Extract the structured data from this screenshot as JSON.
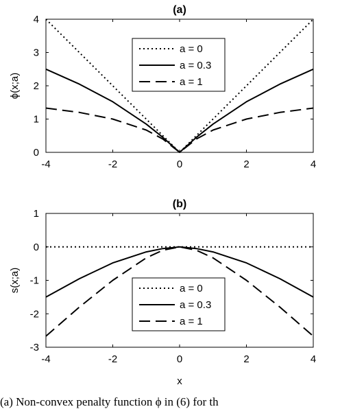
{
  "chart_data": [
    {
      "type": "line",
      "title": "(a)",
      "xlabel": "",
      "ylabel": "ϕ(x;a)",
      "xlim": [
        -4,
        4
      ],
      "ylim": [
        0,
        4
      ],
      "xticks": [
        "-4",
        "-2",
        "0",
        "2",
        "4"
      ],
      "yticks": [
        "0",
        "1",
        "2",
        "3",
        "4"
      ],
      "grid": false,
      "legend_position": "top-center",
      "series": [
        {
          "name": "a = 0",
          "style": "dotted",
          "x": [
            -4,
            -2,
            0,
            2,
            4
          ],
          "y": [
            4,
            2,
            0,
            2,
            4
          ]
        },
        {
          "name": "a = 0.3",
          "style": "solid",
          "x": [
            -4,
            -3,
            -2,
            -1,
            -0.5,
            0,
            0.5,
            1,
            2,
            3,
            4
          ],
          "y": [
            2.5,
            2.05,
            1.52,
            0.85,
            0.45,
            0,
            0.45,
            0.85,
            1.52,
            2.05,
            2.5
          ]
        },
        {
          "name": "a = 1",
          "style": "dashed",
          "x": [
            -4,
            -3,
            -2,
            -1,
            -0.5,
            0,
            0.5,
            1,
            2,
            3,
            4
          ],
          "y": [
            1.33,
            1.2,
            1.0,
            0.67,
            0.4,
            0,
            0.4,
            0.67,
            1.0,
            1.2,
            1.33
          ]
        }
      ]
    },
    {
      "type": "line",
      "title": "(b)",
      "xlabel": "x",
      "ylabel": "s(x;a)",
      "xlim": [
        -4,
        4
      ],
      "ylim": [
        -3,
        1
      ],
      "xticks": [
        "-4",
        "-2",
        "0",
        "2",
        "4"
      ],
      "yticks": [
        "-3",
        "-2",
        "-1",
        "0",
        "1"
      ],
      "grid": false,
      "legend_position": "bottom-center",
      "series": [
        {
          "name": "a = 0",
          "style": "dotted",
          "x": [
            -4,
            4
          ],
          "y": [
            0,
            0
          ]
        },
        {
          "name": "a = 0.3",
          "style": "solid",
          "x": [
            -4,
            -3,
            -2,
            -1,
            -0.5,
            0,
            0.5,
            1,
            2,
            3,
            4
          ],
          "y": [
            -1.5,
            -0.95,
            -0.48,
            -0.15,
            -0.05,
            0,
            -0.05,
            -0.15,
            -0.48,
            -0.95,
            -1.5
          ]
        },
        {
          "name": "a = 1",
          "style": "dashed",
          "x": [
            -4,
            -3,
            -2,
            -1,
            -0.5,
            0,
            0.5,
            1,
            2,
            3,
            4
          ],
          "y": [
            -2.67,
            -1.8,
            -1.0,
            -0.33,
            -0.1,
            0,
            -0.1,
            -0.33,
            -1.0,
            -1.8,
            -2.67
          ]
        }
      ]
    }
  ],
  "caption": "(a) Non-convex penalty function ϕ in (6) for th"
}
